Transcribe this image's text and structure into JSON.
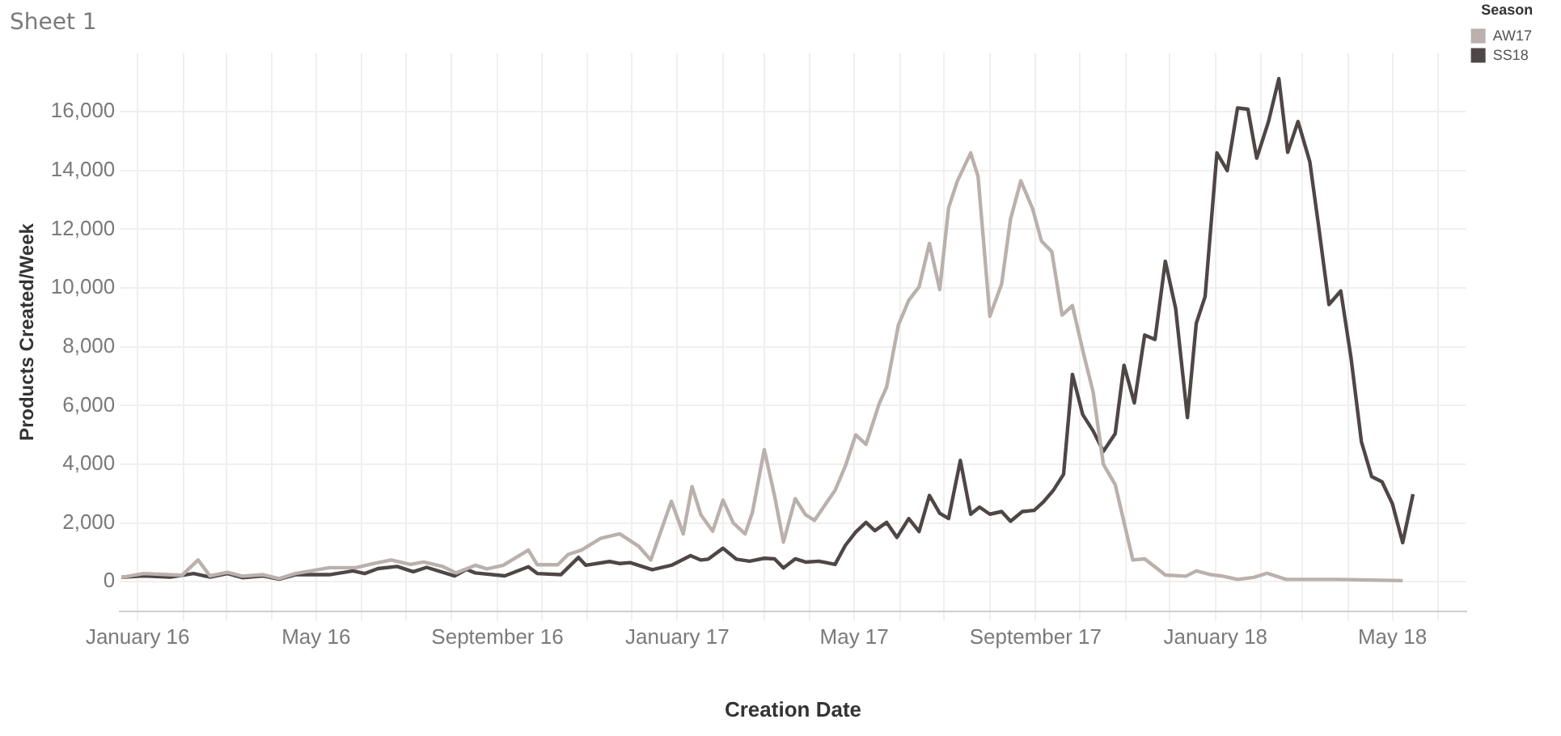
{
  "chart_data": {
    "type": "line",
    "title": "Sheet 1",
    "xlabel": "Creation Date",
    "ylabel": "Products Created/Week",
    "legend_title": "Season",
    "legend": "top right",
    "grid": true,
    "marker": "none",
    "line_style": "solid",
    "xlim": [
      "2015-12-20",
      "2018-06-20"
    ],
    "xticks": [
      {
        "value": "2016-01-01",
        "label": "January 16"
      },
      {
        "value": "2016-02-01",
        "label": null
      },
      {
        "value": "2016-03-01",
        "label": null
      },
      {
        "value": "2016-04-01",
        "label": null
      },
      {
        "value": "2016-05-01",
        "label": "May 16"
      },
      {
        "value": "2016-06-01",
        "label": null
      },
      {
        "value": "2016-07-01",
        "label": null
      },
      {
        "value": "2016-08-01",
        "label": null
      },
      {
        "value": "2016-09-01",
        "label": "September 16"
      },
      {
        "value": "2016-10-01",
        "label": null
      },
      {
        "value": "2016-11-01",
        "label": null
      },
      {
        "value": "2016-12-01",
        "label": null
      },
      {
        "value": "2017-01-01",
        "label": "January 17"
      },
      {
        "value": "2017-02-01",
        "label": null
      },
      {
        "value": "2017-03-01",
        "label": null
      },
      {
        "value": "2017-04-01",
        "label": null
      },
      {
        "value": "2017-05-01",
        "label": "May 17"
      },
      {
        "value": "2017-06-01",
        "label": null
      },
      {
        "value": "2017-07-01",
        "label": null
      },
      {
        "value": "2017-08-01",
        "label": null
      },
      {
        "value": "2017-09-01",
        "label": "September 17"
      },
      {
        "value": "2017-10-01",
        "label": null
      },
      {
        "value": "2017-11-01",
        "label": null
      },
      {
        "value": "2017-12-01",
        "label": null
      },
      {
        "value": "2018-01-01",
        "label": "January 18"
      },
      {
        "value": "2018-02-01",
        "label": null
      },
      {
        "value": "2018-03-01",
        "label": null
      },
      {
        "value": "2018-04-01",
        "label": null
      },
      {
        "value": "2018-05-01",
        "label": "May 18"
      },
      {
        "value": "2018-06-01",
        "label": null
      }
    ],
    "ylim": [
      -1000,
      18000
    ],
    "yticks": [
      {
        "value": 0,
        "label": "0"
      },
      {
        "value": 2000,
        "label": "2,000"
      },
      {
        "value": 4000,
        "label": "4,000"
      },
      {
        "value": 6000,
        "label": "6,000"
      },
      {
        "value": 8000,
        "label": "8,000"
      },
      {
        "value": 10000,
        "label": "10,000"
      },
      {
        "value": 12000,
        "label": "12,000"
      },
      {
        "value": 14000,
        "label": "14,000"
      },
      {
        "value": 16000,
        "label": "16,000"
      }
    ],
    "series": [
      {
        "name": "AW17",
        "color": "#bab0ac",
        "x": [
          "2015-12-21",
          "2016-01-05",
          "2016-01-31",
          "2016-02-11",
          "2016-02-19",
          "2016-03-02",
          "2016-03-12",
          "2016-03-26",
          "2016-04-06",
          "2016-04-17",
          "2016-05-10",
          "2016-05-28",
          "2016-06-08",
          "2016-06-21",
          "2016-07-04",
          "2016-07-13",
          "2016-07-26",
          "2016-08-04",
          "2016-08-17",
          "2016-08-25",
          "2016-09-05",
          "2016-09-22",
          "2016-09-28",
          "2016-10-12",
          "2016-10-19",
          "2016-10-28",
          "2016-11-10",
          "2016-11-23",
          "2016-12-06",
          "2016-12-14",
          "2016-12-28",
          "2017-01-05",
          "2017-01-11",
          "2017-01-17",
          "2017-01-25",
          "2017-02-01",
          "2017-02-08",
          "2017-02-16",
          "2017-02-21",
          "2017-03-01",
          "2017-03-08",
          "2017-03-14",
          "2017-03-22",
          "2017-03-29",
          "2017-04-04",
          "2017-04-18",
          "2017-04-25",
          "2017-05-02",
          "2017-05-09",
          "2017-05-18",
          "2017-05-23",
          "2017-05-31",
          "2017-06-07",
          "2017-06-14",
          "2017-06-21",
          "2017-06-28",
          "2017-07-04",
          "2017-07-10",
          "2017-07-19",
          "2017-07-24",
          "2017-08-01",
          "2017-08-09",
          "2017-08-15",
          "2017-08-22",
          "2017-08-30",
          "2017-09-05",
          "2017-09-12",
          "2017-09-19",
          "2017-09-26",
          "2017-10-04",
          "2017-10-10",
          "2017-10-17",
          "2017-10-25",
          "2017-11-06",
          "2017-11-14",
          "2017-11-22",
          "2017-11-28",
          "2017-12-12",
          "2017-12-19",
          "2017-12-28",
          "2018-01-06",
          "2018-01-16",
          "2018-01-27",
          "2018-02-05",
          "2018-02-18",
          "2018-03-24",
          "2018-05-08"
        ],
        "values": [
          150,
          280,
          220,
          740,
          200,
          320,
          190,
          240,
          110,
          280,
          480,
          480,
          610,
          740,
          590,
          670,
          520,
          300,
          560,
          440,
          560,
          1080,
          580,
          580,
          930,
          1080,
          1480,
          1630,
          1200,
          740,
          2740,
          1630,
          3240,
          2280,
          1720,
          2780,
          2000,
          1630,
          2370,
          4500,
          2920,
          1350,
          2830,
          2280,
          2090,
          3110,
          3940,
          5000,
          4680,
          6070,
          6630,
          8750,
          9580,
          10040,
          11520,
          9950,
          12730,
          13650,
          14600,
          13800,
          9040,
          10140,
          12340,
          13650,
          12700,
          11600,
          11240,
          9080,
          9400,
          7670,
          6470,
          4000,
          3310,
          740,
          780,
          470,
          230,
          190,
          370,
          250,
          190,
          80,
          150,
          290,
          80,
          80,
          40
        ]
      },
      {
        "name": "SS18",
        "color": "#4f4646",
        "x": [
          "2015-12-21",
          "2016-01-05",
          "2016-01-23",
          "2016-02-08",
          "2016-02-19",
          "2016-03-02",
          "2016-03-12",
          "2016-03-26",
          "2016-04-06",
          "2016-04-17",
          "2016-05-10",
          "2016-05-26",
          "2016-06-03",
          "2016-06-12",
          "2016-06-25",
          "2016-07-06",
          "2016-07-15",
          "2016-08-03",
          "2016-08-11",
          "2016-08-17",
          "2016-09-06",
          "2016-09-22",
          "2016-09-28",
          "2016-10-14",
          "2016-10-26",
          "2016-10-31",
          "2016-11-16",
          "2016-11-23",
          "2016-11-30",
          "2016-12-15",
          "2016-12-28",
          "2017-01-10",
          "2017-01-17",
          "2017-01-22",
          "2017-02-01",
          "2017-02-10",
          "2017-02-19",
          "2017-03-01",
          "2017-03-08",
          "2017-03-14",
          "2017-03-22",
          "2017-03-29",
          "2017-04-07",
          "2017-04-18",
          "2017-04-25",
          "2017-05-02",
          "2017-05-09",
          "2017-05-15",
          "2017-05-23",
          "2017-05-30",
          "2017-06-07",
          "2017-06-14",
          "2017-06-21",
          "2017-06-28",
          "2017-07-04",
          "2017-07-12",
          "2017-07-19",
          "2017-07-25",
          "2017-08-01",
          "2017-08-09",
          "2017-08-15",
          "2017-08-23",
          "2017-08-31",
          "2017-09-06",
          "2017-09-13",
          "2017-09-20",
          "2017-09-26",
          "2017-10-03",
          "2017-10-10",
          "2017-10-17",
          "2017-10-25",
          "2017-10-31",
          "2017-11-07",
          "2017-11-14",
          "2017-11-21",
          "2017-11-28",
          "2017-12-05",
          "2017-12-13",
          "2017-12-19",
          "2017-12-25",
          "2018-01-02",
          "2018-01-09",
          "2018-01-16",
          "2018-01-23",
          "2018-01-29",
          "2018-02-06",
          "2018-02-13",
          "2018-02-19",
          "2018-02-26",
          "2018-03-06",
          "2018-03-12",
          "2018-03-19",
          "2018-03-27",
          "2018-04-03",
          "2018-04-10",
          "2018-04-17",
          "2018-04-24",
          "2018-05-01",
          "2018-05-08",
          "2018-05-15"
        ],
        "values": [
          150,
          200,
          160,
          280,
          160,
          280,
          140,
          200,
          90,
          240,
          240,
          370,
          280,
          450,
          520,
          340,
          490,
          200,
          420,
          300,
          200,
          510,
          280,
          240,
          830,
          560,
          690,
          620,
          650,
          410,
          560,
          890,
          740,
          770,
          1140,
          770,
          700,
          800,
          780,
          470,
          780,
          670,
          700,
          590,
          1240,
          1690,
          2020,
          1740,
          2020,
          1510,
          2150,
          1710,
          2940,
          2330,
          2150,
          4130,
          2300,
          2540,
          2300,
          2390,
          2060,
          2390,
          2430,
          2700,
          3110,
          3660,
          7060,
          5690,
          5140,
          4440,
          5040,
          7370,
          6090,
          8400,
          8250,
          10910,
          9310,
          5590,
          8800,
          9710,
          14600,
          14000,
          16130,
          16090,
          14420,
          15670,
          17130,
          14620,
          15670,
          14300,
          12100,
          9440,
          9900,
          7610,
          4770,
          3580,
          3400,
          2660,
          1330,
          2980
        ]
      }
    ]
  }
}
